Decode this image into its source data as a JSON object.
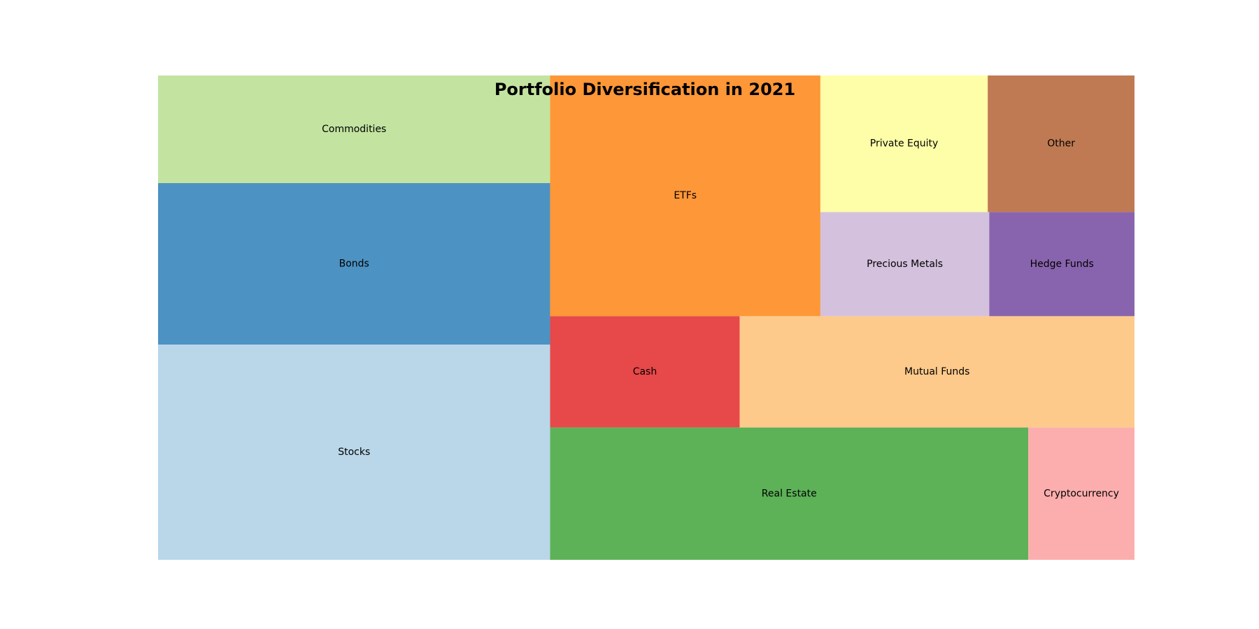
{
  "chart_data": {
    "type": "treemap",
    "title": "Portfolio Diversification in 2021",
    "background_color": "#ffffff",
    "items": [
      {
        "label": "Stocks",
        "value": 24,
        "color": "#b9d7e9"
      },
      {
        "label": "Bonds",
        "value": 18,
        "color": "#4c92c3"
      },
      {
        "label": "Commodities",
        "value": 12,
        "color": "#c2e4a0"
      },
      {
        "label": "Real Estate",
        "value": 18,
        "color": "#5db258"
      },
      {
        "label": "Cryptocurrency",
        "value": 4,
        "color": "#fcaeae"
      },
      {
        "label": "Cash",
        "value": 6,
        "color": "#e7484a"
      },
      {
        "label": "Mutual Funds",
        "value": 12.5,
        "color": "#fdca8b"
      },
      {
        "label": "ETFs",
        "value": 18.5,
        "color": "#fe9737"
      },
      {
        "label": "Precious Metals",
        "value": 5,
        "color": "#d4c1dd"
      },
      {
        "label": "Hedge Funds",
        "value": 4.3,
        "color": "#8964ae"
      },
      {
        "label": "Private Equity",
        "value": 6.5,
        "color": "#fefea8"
      },
      {
        "label": "Other",
        "value": 5.7,
        "color": "#bf7a53"
      }
    ]
  }
}
